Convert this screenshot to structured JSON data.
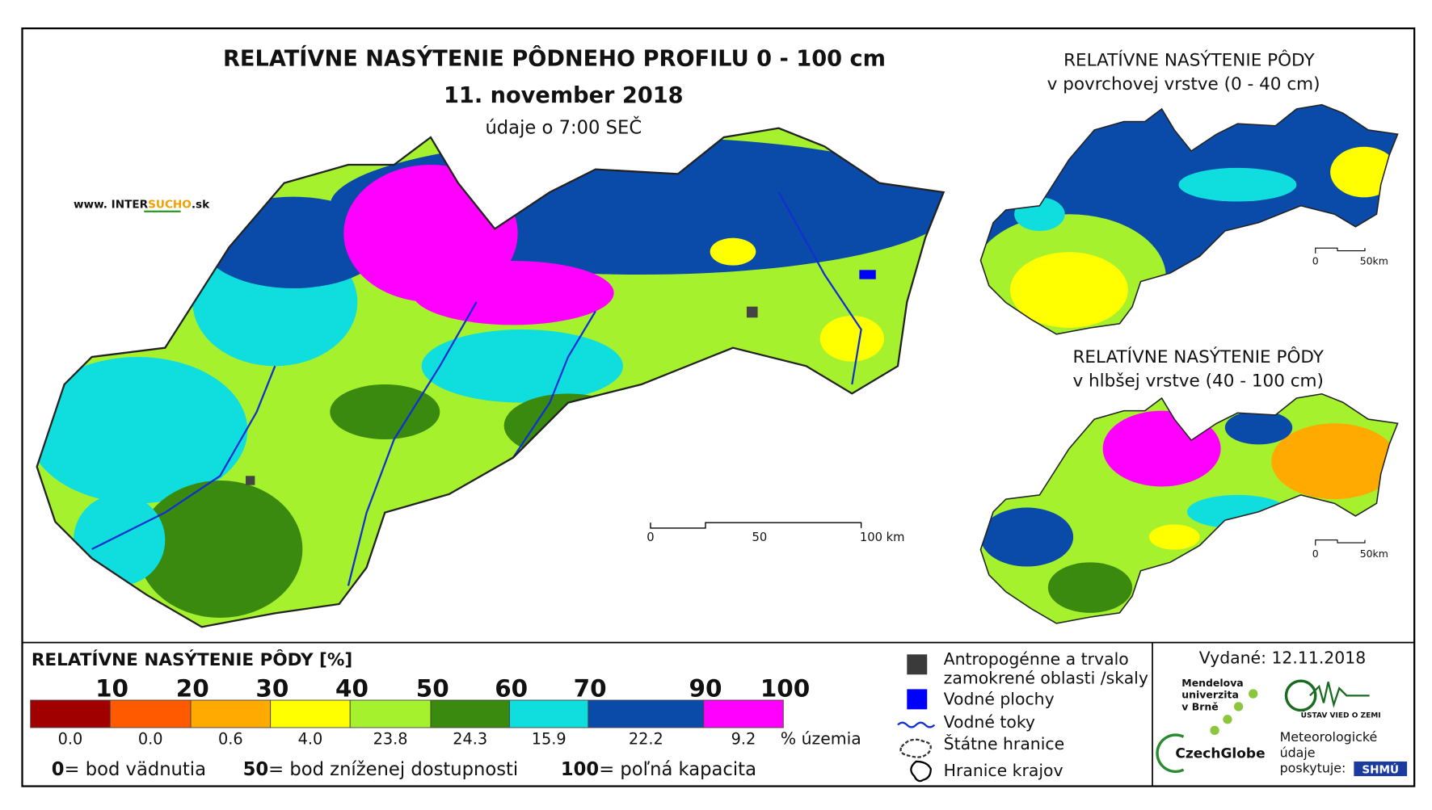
{
  "main": {
    "title": "RELATÍVNE NASÝTENIE PÔDNEHO PROFILU 0 - 100 cm",
    "date": "11. november 2018",
    "time_note": "údaje o 7:00 SEČ",
    "website": {
      "prefix": "www. INTER",
      "accent": "SUCHO",
      "suffix": ".sk"
    },
    "scale": [
      "0",
      "50",
      "100 km"
    ]
  },
  "insets": [
    {
      "title": [
        "RELATÍVNE NASÝTENIE PÔDY",
        "v povrchovej vrstve (0 - 40 cm)"
      ],
      "scale": [
        "0",
        "50km"
      ]
    },
    {
      "title": [
        "RELATÍVNE NASÝTENIE PÔDY",
        "v hlbšej vrstve (40 - 100 cm)"
      ],
      "scale": [
        "0",
        "50km"
      ]
    }
  ],
  "legend": {
    "title": "RELATÍVNE NASÝTENIE PÔDY [%]",
    "breaks": [
      "10",
      "20",
      "30",
      "40",
      "50",
      "60",
      "70",
      "90",
      "100"
    ],
    "classes": [
      {
        "color": "#a00000",
        "share": "0.0"
      },
      {
        "color": "#ff5a00",
        "share": "0.0"
      },
      {
        "color": "#ffaa00",
        "share": "0.6"
      },
      {
        "color": "#ffff00",
        "share": "4.0"
      },
      {
        "color": "#a6f12d",
        "share": "23.8"
      },
      {
        "color": "#3a8a10",
        "share": "24.3"
      },
      {
        "color": "#10dede",
        "share": "15.9"
      },
      {
        "color": "#0a4aa8",
        "share": "22.2"
      },
      {
        "color": "#ff00ff",
        "share": "9.2"
      }
    ],
    "share_unit": "% územia",
    "notes": [
      {
        "value": "0",
        "text": "= bod vädnutia"
      },
      {
        "value": "50",
        "text": "= bod zníženej dostupnosti"
      },
      {
        "value": "100",
        "text": "= poľná kapacita"
      }
    ]
  },
  "layers": [
    {
      "label": [
        "Antropogénne a trvalo",
        "zamokrené oblasti /skaly"
      ]
    },
    {
      "label": [
        "Vodné plochy"
      ]
    },
    {
      "label": [
        "Vodné toky"
      ]
    },
    {
      "label": [
        "Štátne hranice"
      ]
    },
    {
      "label": [
        "Hranice krajov"
      ]
    }
  ],
  "issued": "Vydané: 12.11.2018",
  "logos": {
    "mendel": [
      "Mendelova",
      "univerzita",
      "v Brně"
    ],
    "czechglobe": "CzechGlobe",
    "uvz": "ÚSTAV VIED O ZEMI",
    "meteo": [
      "Meteorologické",
      "údaje",
      "poskytuje:"
    ],
    "shmu": "SHMÚ"
  }
}
